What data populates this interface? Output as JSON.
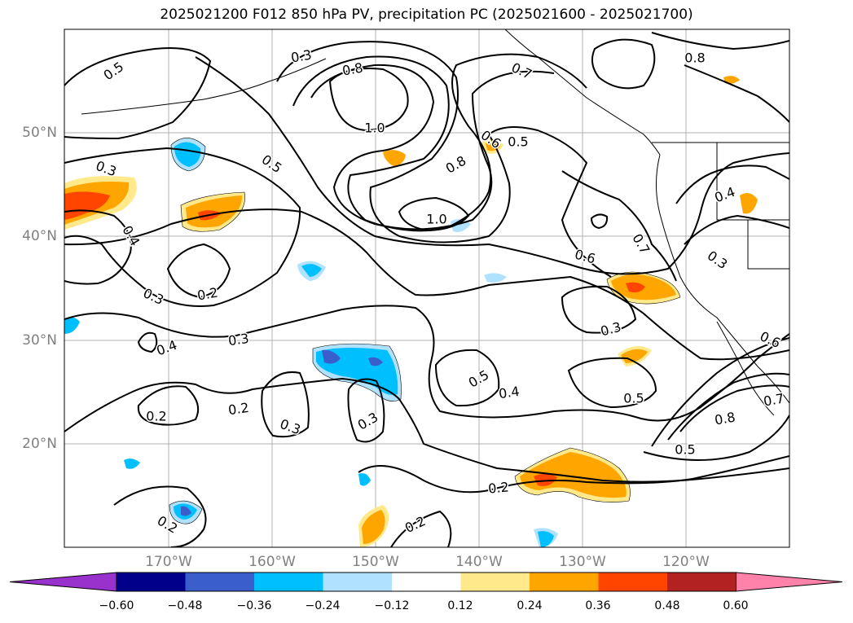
{
  "title": "2025021200 F012 850 hPa PV, precipitation PC (2025021600 - 2025021700)",
  "lat_labels": [
    "50°N",
    "40°N",
    "30°N",
    "20°N"
  ],
  "lon_labels": [
    "170°W",
    "160°W",
    "150°W",
    "140°W",
    "130°W",
    "120°W"
  ],
  "contour_labels": [
    "0.5",
    "0.3",
    "0.8",
    "1.0",
    "0.7",
    "0.5",
    "0.6",
    "0.8",
    "1.0",
    "0.8",
    "0.3",
    "0.5",
    "0.4",
    "0.3",
    "0.2",
    "0.4",
    "0.3",
    "0.2",
    "0.2",
    "0.3",
    "0.3",
    "0.2",
    "0.2",
    "0.5",
    "0.4",
    "0.5",
    "0.2",
    "0.8",
    "0.5",
    "0.6",
    "0.7",
    "0.3",
    "0.6",
    "0.4",
    "0.3",
    "0.7"
  ],
  "colorbar": {
    "ticks": [
      "−0.60",
      "−0.48",
      "−0.36",
      "−0.24",
      "−0.12",
      "0.12",
      "0.24",
      "0.36",
      "0.48",
      "0.60"
    ],
    "colors": [
      "#9932cc",
      "#00008b",
      "#3a5fcd",
      "#00bfff",
      "#b0e2ff",
      "#ffffff",
      "#ffe98a",
      "#ffa500",
      "#ff4500",
      "#b22222",
      "#ff82ab"
    ]
  }
}
